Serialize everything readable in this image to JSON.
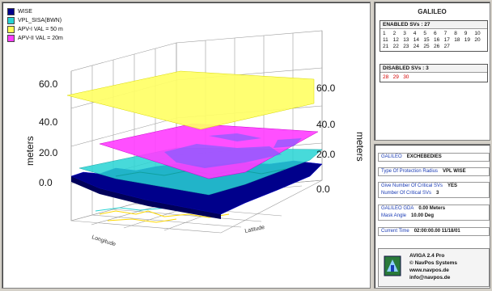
{
  "legend": [
    {
      "label": "WISE",
      "color": "#00008b"
    },
    {
      "label": "VPL_SISA(BWN)",
      "color": "#27d3d3"
    },
    {
      "label": "APV-I VAL = 50 m",
      "color": "#ffff55"
    },
    {
      "label": "APV-II VAL = 20m",
      "color": "#ff3cff"
    }
  ],
  "plot": {
    "zlabel_left": "meters",
    "zlabel_right": "meters",
    "zticks_left": [
      "60.0",
      "40.0",
      "20.0",
      "0.0"
    ],
    "zticks_right": [
      "60.0",
      "40.0",
      "20.0",
      "0.0"
    ],
    "axis_x_label": "Longitude",
    "axis_y_label": "Latitude"
  },
  "galileo": {
    "title": "GALILEO",
    "enabled_header": "ENABLED SVs : 27",
    "enabled_svs": [
      "1",
      "2",
      "3",
      "4",
      "5",
      "6",
      "7",
      "8",
      "9",
      "10",
      "11",
      "12",
      "13",
      "14",
      "15",
      "16",
      "17",
      "18",
      "19",
      "20",
      "21",
      "22",
      "23",
      "24",
      "25",
      "26",
      "27"
    ],
    "disabled_header": "DISABLED SVs : 3",
    "disabled_svs": [
      "28",
      "29",
      "30"
    ]
  },
  "info": {
    "rows1": [
      {
        "label": "GALILEO",
        "value": "EXCHEBEDIES"
      }
    ],
    "rows2": [
      {
        "label": "Type Of Protection Radius",
        "value": "VPL WISE"
      }
    ],
    "rows3": [
      {
        "label": "Give Number Of Critical SVs",
        "value": "YES"
      },
      {
        "label": "Number Of Critical SVs",
        "value": "3"
      }
    ],
    "rows4": [
      {
        "label": "GALILEO GDA",
        "value": "0.00 Meters"
      },
      {
        "label": "Mask Angle",
        "value": "10.00 Deg"
      }
    ],
    "rows5": [
      {
        "label": "Current Time",
        "value": "02:00:00.00 11/18/01"
      }
    ],
    "about": [
      "AVIGA 2.4 Pro",
      "© NavPos Systems",
      "www.navpos.de",
      "info@navpos.de"
    ]
  }
}
